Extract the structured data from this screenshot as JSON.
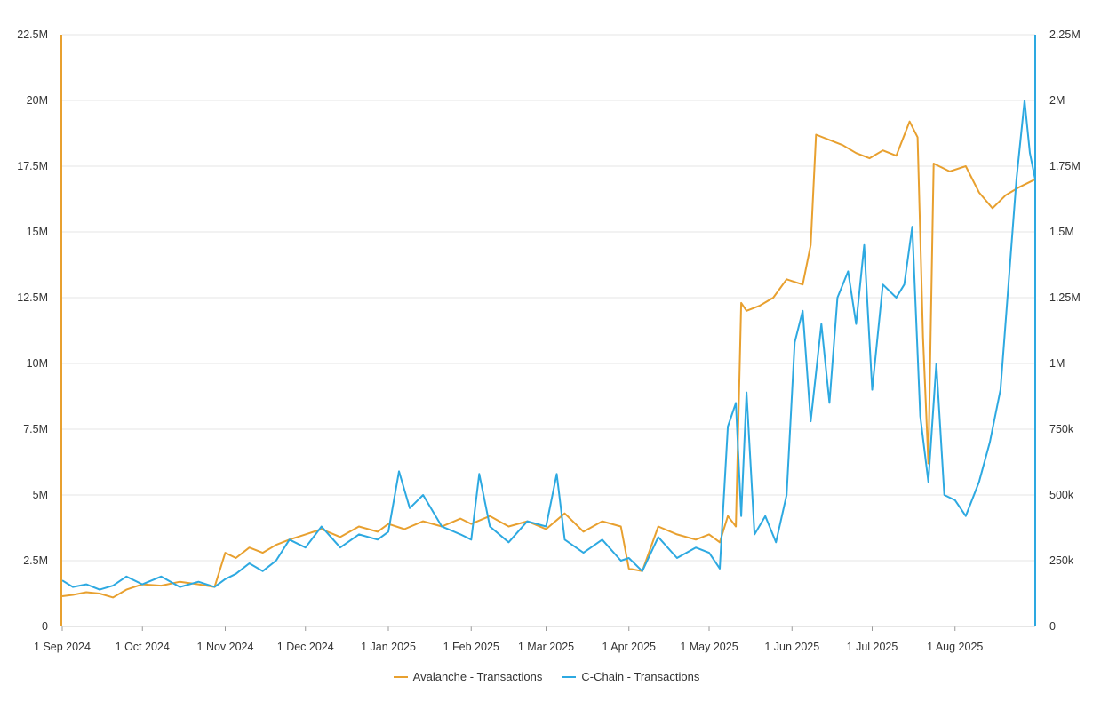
{
  "colors": {
    "left_series": "#E8A02F",
    "right_series": "#2DA9E1",
    "grid": "#E6E6E6",
    "axis_text": "#333333"
  },
  "chart_data": {
    "type": "line",
    "title": "",
    "xlabel": "",
    "x_ticks": [
      "1 Sep 2024",
      "1 Oct 2024",
      "1 Nov 2024",
      "1 Dec 2024",
      "1 Jan 2025",
      "1 Feb 2025",
      "1 Mar 2025",
      "1 Apr 2025",
      "1 May 2025",
      "1 Jun 2025",
      "1 Jul 2025",
      "1 Aug 2025"
    ],
    "x_range": [
      "2024-09-01",
      "2025-08-31"
    ],
    "y_left": {
      "range": [
        0,
        22500000
      ],
      "ticks": [
        "0",
        "2.5M",
        "5M",
        "7.5M",
        "10M",
        "12.5M",
        "15M",
        "17.5M",
        "20M",
        "22.5M"
      ]
    },
    "y_right": {
      "range": [
        0,
        2250000
      ],
      "ticks": [
        "0",
        "250k",
        "500k",
        "750k",
        "1M",
        "1.25M",
        "1.5M",
        "1.75M",
        "2M",
        "2.25M"
      ]
    },
    "grid": true,
    "legend_position": "bottom",
    "series": [
      {
        "name": "Avalanche - Transactions",
        "axis": "left",
        "color": "#E8A02F",
        "points": [
          [
            "2024-09-01",
            1150000
          ],
          [
            "2024-09-05",
            1200000
          ],
          [
            "2024-09-10",
            1300000
          ],
          [
            "2024-09-15",
            1250000
          ],
          [
            "2024-09-20",
            1100000
          ],
          [
            "2024-09-25",
            1400000
          ],
          [
            "2024-10-01",
            1600000
          ],
          [
            "2024-10-08",
            1550000
          ],
          [
            "2024-10-15",
            1700000
          ],
          [
            "2024-10-22",
            1600000
          ],
          [
            "2024-10-28",
            1500000
          ],
          [
            "2024-11-01",
            2800000
          ],
          [
            "2024-11-05",
            2600000
          ],
          [
            "2024-11-10",
            3000000
          ],
          [
            "2024-11-15",
            2800000
          ],
          [
            "2024-11-20",
            3100000
          ],
          [
            "2024-11-25",
            3300000
          ],
          [
            "2024-12-01",
            3500000
          ],
          [
            "2024-12-07",
            3700000
          ],
          [
            "2024-12-14",
            3400000
          ],
          [
            "2024-12-21",
            3800000
          ],
          [
            "2024-12-28",
            3600000
          ],
          [
            "2025-01-01",
            3900000
          ],
          [
            "2025-01-07",
            3700000
          ],
          [
            "2025-01-14",
            4000000
          ],
          [
            "2025-01-21",
            3800000
          ],
          [
            "2025-01-28",
            4100000
          ],
          [
            "2025-02-01",
            3900000
          ],
          [
            "2025-02-08",
            4200000
          ],
          [
            "2025-02-15",
            3800000
          ],
          [
            "2025-02-22",
            4000000
          ],
          [
            "2025-03-01",
            3700000
          ],
          [
            "2025-03-08",
            4300000
          ],
          [
            "2025-03-15",
            3600000
          ],
          [
            "2025-03-22",
            4000000
          ],
          [
            "2025-03-29",
            3800000
          ],
          [
            "2025-04-01",
            2200000
          ],
          [
            "2025-04-06",
            2100000
          ],
          [
            "2025-04-12",
            3800000
          ],
          [
            "2025-04-19",
            3500000
          ],
          [
            "2025-04-26",
            3300000
          ],
          [
            "2025-05-01",
            3500000
          ],
          [
            "2025-05-05",
            3200000
          ],
          [
            "2025-05-08",
            4200000
          ],
          [
            "2025-05-11",
            3800000
          ],
          [
            "2025-05-13",
            12300000
          ],
          [
            "2025-05-15",
            12000000
          ],
          [
            "2025-05-20",
            12200000
          ],
          [
            "2025-05-25",
            12500000
          ],
          [
            "2025-05-30",
            13200000
          ],
          [
            "2025-06-05",
            13000000
          ],
          [
            "2025-06-08",
            14500000
          ],
          [
            "2025-06-10",
            18700000
          ],
          [
            "2025-06-15",
            18500000
          ],
          [
            "2025-06-20",
            18300000
          ],
          [
            "2025-06-25",
            18000000
          ],
          [
            "2025-06-30",
            17800000
          ],
          [
            "2025-07-05",
            18100000
          ],
          [
            "2025-07-10",
            17900000
          ],
          [
            "2025-07-15",
            19200000
          ],
          [
            "2025-07-18",
            18600000
          ],
          [
            "2025-07-20",
            11000000
          ],
          [
            "2025-07-22",
            6200000
          ],
          [
            "2025-07-24",
            17600000
          ],
          [
            "2025-07-30",
            17300000
          ],
          [
            "2025-08-05",
            17500000
          ],
          [
            "2025-08-10",
            16500000
          ],
          [
            "2025-08-15",
            15900000
          ],
          [
            "2025-08-20",
            16400000
          ],
          [
            "2025-08-25",
            16700000
          ],
          [
            "2025-08-31",
            17000000
          ]
        ]
      },
      {
        "name": "C-Chain - Transactions",
        "axis": "right",
        "color": "#2DA9E1",
        "points": [
          [
            "2024-09-01",
            175000
          ],
          [
            "2024-09-05",
            150000
          ],
          [
            "2024-09-10",
            160000
          ],
          [
            "2024-09-15",
            140000
          ],
          [
            "2024-09-20",
            155000
          ],
          [
            "2024-09-25",
            190000
          ],
          [
            "2024-10-01",
            160000
          ],
          [
            "2024-10-08",
            190000
          ],
          [
            "2024-10-15",
            150000
          ],
          [
            "2024-10-22",
            170000
          ],
          [
            "2024-10-28",
            150000
          ],
          [
            "2024-11-01",
            180000
          ],
          [
            "2024-11-05",
            200000
          ],
          [
            "2024-11-10",
            240000
          ],
          [
            "2024-11-15",
            210000
          ],
          [
            "2024-11-20",
            250000
          ],
          [
            "2024-11-25",
            330000
          ],
          [
            "2024-12-01",
            300000
          ],
          [
            "2024-12-07",
            380000
          ],
          [
            "2024-12-14",
            300000
          ],
          [
            "2024-12-21",
            350000
          ],
          [
            "2024-12-28",
            330000
          ],
          [
            "2025-01-01",
            360000
          ],
          [
            "2025-01-05",
            590000
          ],
          [
            "2025-01-09",
            450000
          ],
          [
            "2025-01-14",
            500000
          ],
          [
            "2025-01-21",
            380000
          ],
          [
            "2025-01-28",
            350000
          ],
          [
            "2025-02-01",
            330000
          ],
          [
            "2025-02-04",
            580000
          ],
          [
            "2025-02-08",
            380000
          ],
          [
            "2025-02-15",
            320000
          ],
          [
            "2025-02-22",
            400000
          ],
          [
            "2025-03-01",
            380000
          ],
          [
            "2025-03-05",
            580000
          ],
          [
            "2025-03-08",
            330000
          ],
          [
            "2025-03-15",
            280000
          ],
          [
            "2025-03-22",
            330000
          ],
          [
            "2025-03-29",
            250000
          ],
          [
            "2025-04-01",
            260000
          ],
          [
            "2025-04-06",
            210000
          ],
          [
            "2025-04-12",
            340000
          ],
          [
            "2025-04-19",
            260000
          ],
          [
            "2025-04-26",
            300000
          ],
          [
            "2025-05-01",
            280000
          ],
          [
            "2025-05-05",
            220000
          ],
          [
            "2025-05-08",
            760000
          ],
          [
            "2025-05-11",
            850000
          ],
          [
            "2025-05-13",
            420000
          ],
          [
            "2025-05-15",
            890000
          ],
          [
            "2025-05-18",
            350000
          ],
          [
            "2025-05-22",
            420000
          ],
          [
            "2025-05-26",
            320000
          ],
          [
            "2025-05-30",
            500000
          ],
          [
            "2025-06-02",
            1080000
          ],
          [
            "2025-06-05",
            1200000
          ],
          [
            "2025-06-08",
            780000
          ],
          [
            "2025-06-12",
            1150000
          ],
          [
            "2025-06-15",
            850000
          ],
          [
            "2025-06-18",
            1250000
          ],
          [
            "2025-06-22",
            1350000
          ],
          [
            "2025-06-25",
            1150000
          ],
          [
            "2025-06-28",
            1450000
          ],
          [
            "2025-07-01",
            900000
          ],
          [
            "2025-07-05",
            1300000
          ],
          [
            "2025-07-10",
            1250000
          ],
          [
            "2025-07-13",
            1300000
          ],
          [
            "2025-07-16",
            1520000
          ],
          [
            "2025-07-19",
            800000
          ],
          [
            "2025-07-22",
            550000
          ],
          [
            "2025-07-25",
            1000000
          ],
          [
            "2025-07-28",
            500000
          ],
          [
            "2025-08-01",
            480000
          ],
          [
            "2025-08-05",
            420000
          ],
          [
            "2025-08-10",
            550000
          ],
          [
            "2025-08-14",
            700000
          ],
          [
            "2025-08-18",
            900000
          ],
          [
            "2025-08-21",
            1300000
          ],
          [
            "2025-08-24",
            1700000
          ],
          [
            "2025-08-27",
            2000000
          ],
          [
            "2025-08-29",
            1800000
          ],
          [
            "2025-08-31",
            1700000
          ]
        ]
      }
    ]
  }
}
